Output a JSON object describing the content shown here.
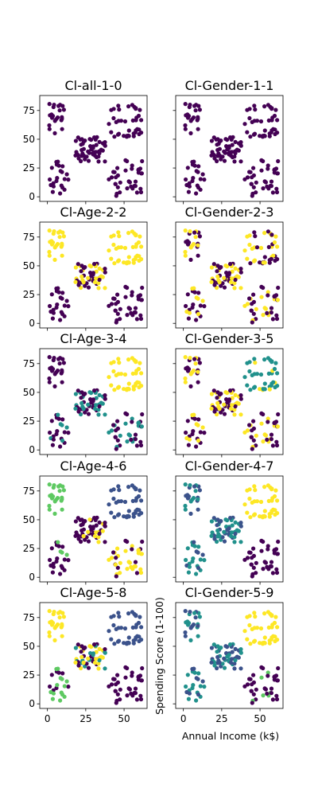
{
  "chart_data": {
    "type": "scatter",
    "xlabel": "Annual Income (k$)",
    "ylabel": "Spending Score (1-100)",
    "xlim": [
      -5,
      65
    ],
    "ylim": [
      -4,
      88
    ],
    "xticks": [
      "0",
      "25",
      "50"
    ],
    "yticks": [
      "0",
      "25",
      "50",
      "75"
    ],
    "colors": {
      "c0": "#440154",
      "c1": "#3b528b",
      "c2": "#21918c",
      "c3": "#5ec962",
      "c4": "#fde725"
    },
    "panels": [
      {
        "title": "Cl-all-1-0",
        "scheme": "all1"
      },
      {
        "title": "Cl-Gender-1-1",
        "scheme": "all1"
      },
      {
        "title": "Cl-Age-2-2",
        "scheme": "age2"
      },
      {
        "title": "Cl-Gender-2-3",
        "scheme": "gender2"
      },
      {
        "title": "Cl-Age-3-4",
        "scheme": "age3"
      },
      {
        "title": "Cl-Gender-3-5",
        "scheme": "gender3"
      },
      {
        "title": "Cl-Age-4-6",
        "scheme": "age4"
      },
      {
        "title": "Cl-Gender-4-7",
        "scheme": "gender4"
      },
      {
        "title": "Cl-Age-5-8",
        "scheme": "age5"
      },
      {
        "title": "Cl-Gender-5-9",
        "scheme": "gender5"
      }
    ]
  }
}
